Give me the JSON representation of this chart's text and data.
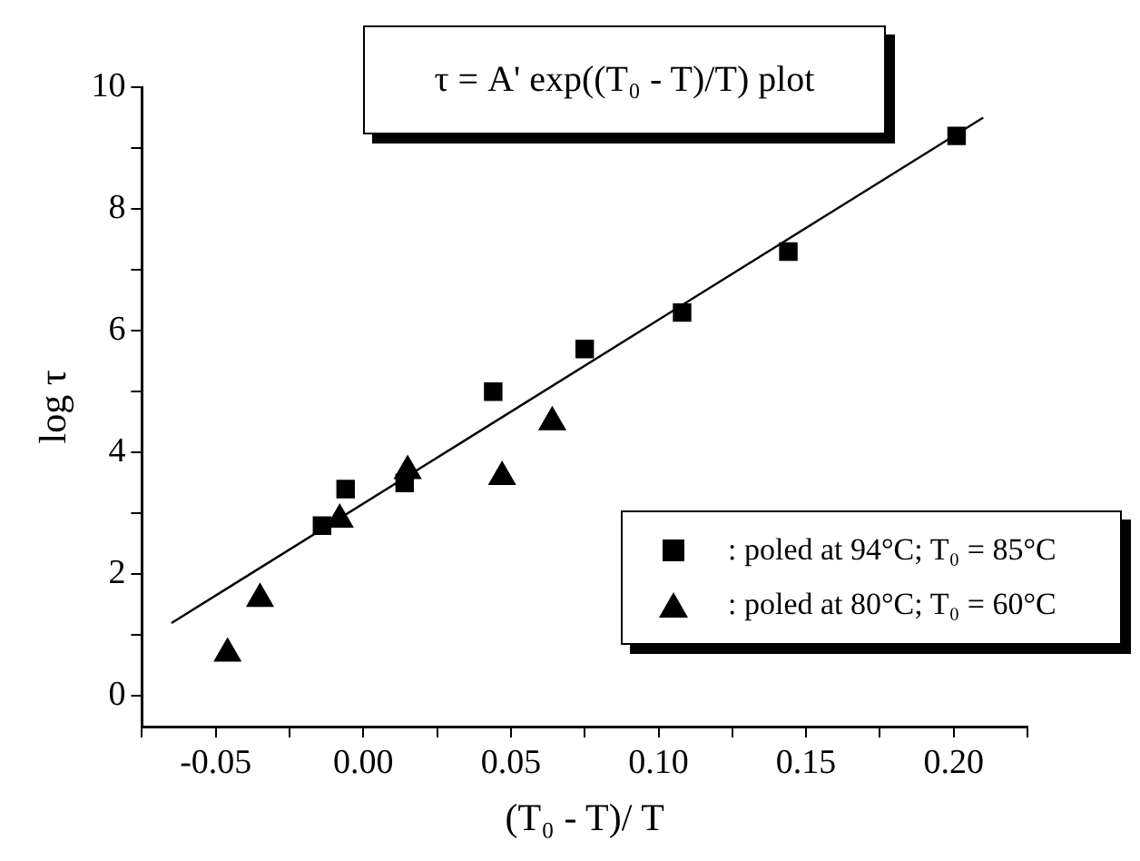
{
  "chart_data": {
    "type": "scatter",
    "title": "τ = A' exp((T₀ - T)/T) plot",
    "xlabel": "(T₀ - T)/ T",
    "ylabel": "log τ",
    "xlim": [
      -0.075,
      0.225
    ],
    "ylim": [
      -0.5,
      10
    ],
    "xticks": [
      {
        "value": -0.075,
        "label": null
      },
      {
        "value": -0.05,
        "label": "-0.05"
      },
      {
        "value": -0.025,
        "label": null
      },
      {
        "value": 0,
        "label": "0.00"
      },
      {
        "value": 0.025,
        "label": null
      },
      {
        "value": 0.05,
        "label": "0.05"
      },
      {
        "value": 0.075,
        "label": null
      },
      {
        "value": 0.1,
        "label": "0.10"
      },
      {
        "value": 0.125,
        "label": null
      },
      {
        "value": 0.15,
        "label": "0.15"
      },
      {
        "value": 0.175,
        "label": null
      },
      {
        "value": 0.2,
        "label": "0.20"
      },
      {
        "value": 0.225,
        "label": null
      }
    ],
    "yticks": [
      0,
      {
        "value": 1,
        "label": null
      },
      2,
      {
        "value": 3,
        "label": null
      },
      4,
      {
        "value": 5,
        "label": null
      },
      6,
      {
        "value": 7,
        "label": null
      },
      8,
      {
        "value": 9,
        "label": null
      },
      10
    ],
    "grid": false,
    "legend": "bottom right",
    "series": [
      {
        "name": ": poled at 94°C; T₀ = 85°C",
        "color": "#000000",
        "marker": "square",
        "x": [
          -0.014,
          -0.006,
          0.014,
          0.044,
          0.075,
          0.108,
          0.144,
          0.201
        ],
        "values": [
          2.8,
          3.4,
          3.5,
          5.0,
          5.7,
          6.3,
          7.3,
          9.2
        ]
      },
      {
        "name": ": poled at 80°C; T₀ = 60°C",
        "color": "#000000",
        "marker": "triangle",
        "x": [
          -0.046,
          -0.035,
          -0.008,
          0.015,
          0.047,
          0.064
        ],
        "values": [
          0.7,
          1.6,
          2.9,
          3.7,
          3.6,
          4.5
        ]
      },
      {
        "type": "line",
        "color": "#000000",
        "marker": "none",
        "line_style": "solid",
        "x": [
          -0.065,
          0.21
        ],
        "values": [
          1.2,
          9.5
        ]
      }
    ]
  }
}
